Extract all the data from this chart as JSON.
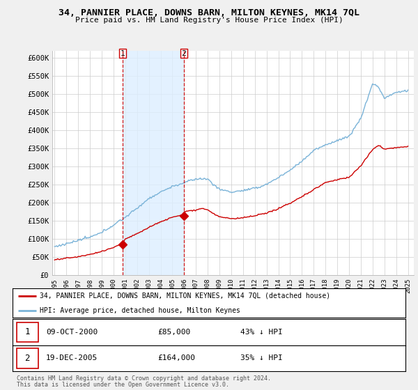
{
  "title": "34, PANNIER PLACE, DOWNS BARN, MILTON KEYNES, MK14 7QL",
  "subtitle": "Price paid vs. HM Land Registry's House Price Index (HPI)",
  "hpi_color": "#7ab3d8",
  "price_color": "#cc0000",
  "fill_color": "#ddeeff",
  "marker_color": "#cc0000",
  "vline_color": "#cc0000",
  "background_color": "#f0f0f0",
  "plot_bg_color": "#ffffff",
  "grid_color": "#cccccc",
  "yticks": [
    0,
    50000,
    100000,
    150000,
    200000,
    250000,
    300000,
    350000,
    400000,
    450000,
    500000,
    550000,
    600000
  ],
  "ytick_labels": [
    "£0",
    "£50K",
    "£100K",
    "£150K",
    "£200K",
    "£250K",
    "£300K",
    "£350K",
    "£400K",
    "£450K",
    "£500K",
    "£550K",
    "£600K"
  ],
  "sale1_date_num": 2000.77,
  "sale1_price": 85000,
  "sale1_label": "1",
  "sale1_date_str": "09-OCT-2000",
  "sale1_pct": "43% ↓ HPI",
  "sale2_date_num": 2005.97,
  "sale2_price": 164000,
  "sale2_label": "2",
  "sale2_date_str": "19-DEC-2005",
  "sale2_pct": "35% ↓ HPI",
  "legend_label_price": "34, PANNIER PLACE, DOWNS BARN, MILTON KEYNES, MK14 7QL (detached house)",
  "legend_label_hpi": "HPI: Average price, detached house, Milton Keynes",
  "footer1": "Contains HM Land Registry data © Crown copyright and database right 2024.",
  "footer2": "This data is licensed under the Open Government Licence v3.0."
}
